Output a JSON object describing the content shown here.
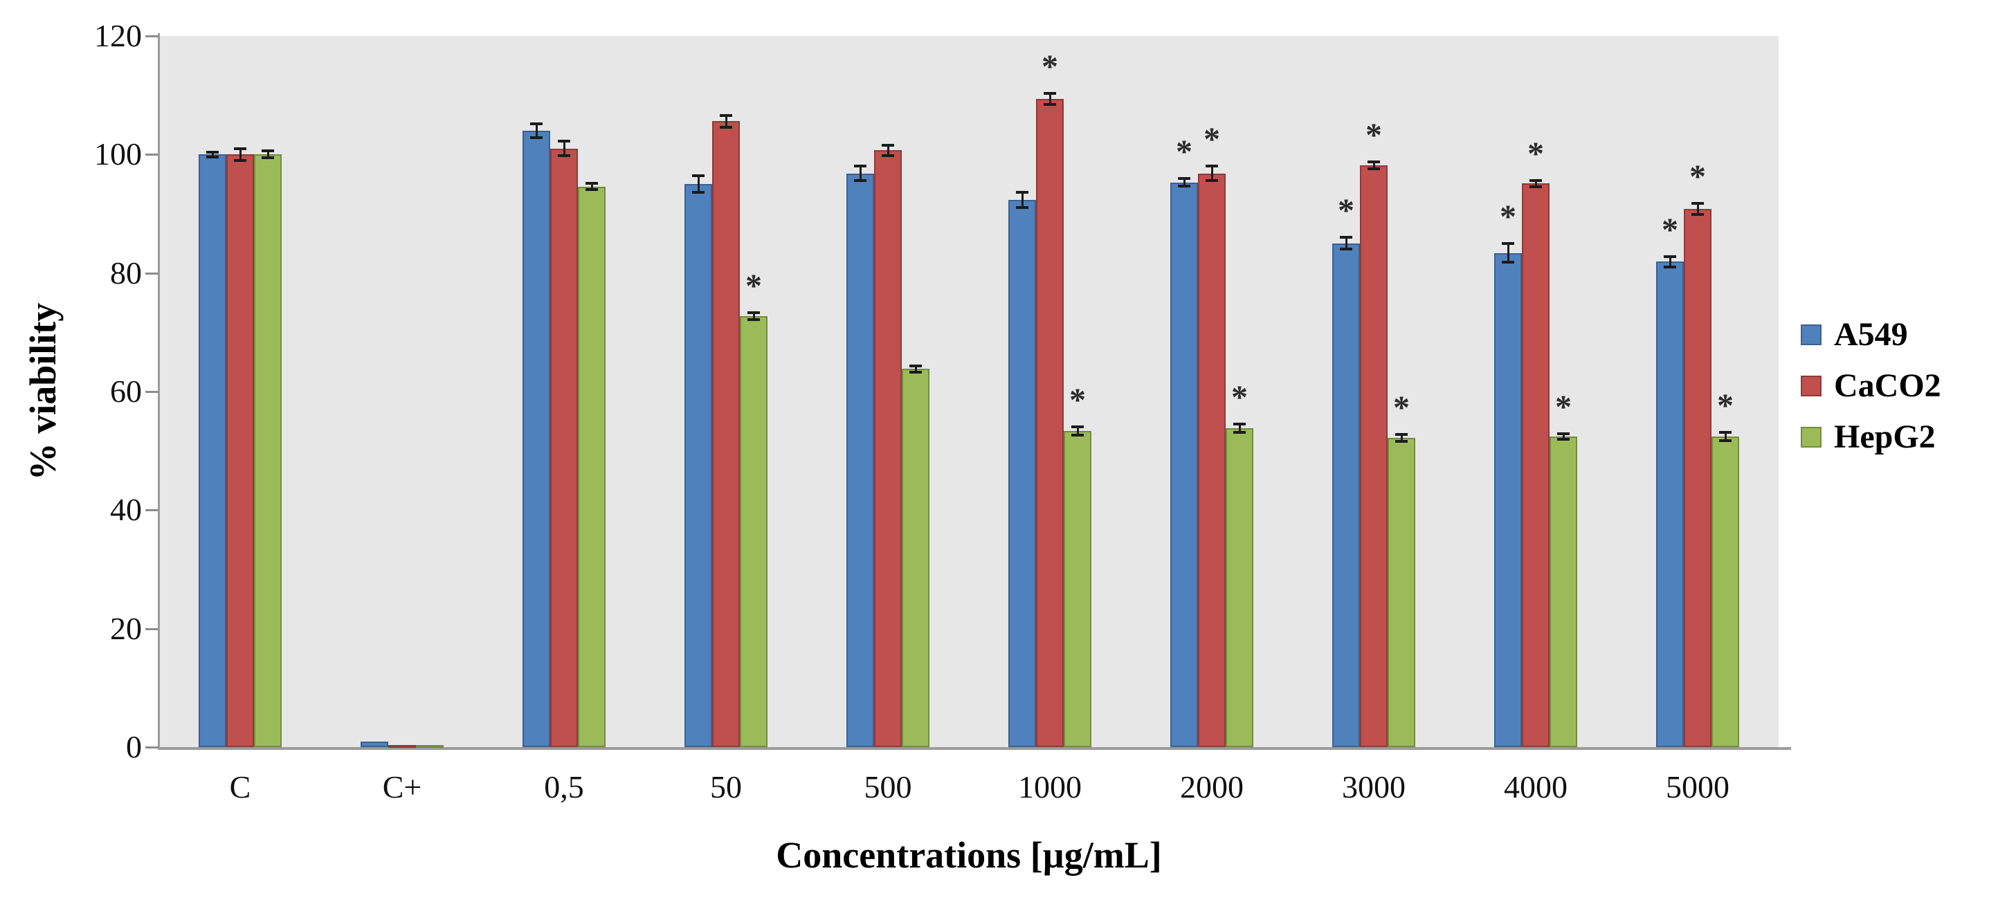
{
  "chart_data": {
    "type": "bar",
    "title": "",
    "xlabel": "Concentrations [µg/mL]",
    "ylabel": "% viability",
    "ylim": [
      0,
      120
    ],
    "yticks": [
      0,
      20,
      40,
      60,
      80,
      100,
      120
    ],
    "grid": false,
    "legend_position": "right",
    "plot_background": "#e7e7e7",
    "axis_line_color": "#9b9b9b",
    "error_bar_color": "#1b1b1b",
    "significance_marker": "*",
    "categories": [
      "C",
      "C+",
      "0,5",
      "50",
      "500",
      "1000",
      "2000",
      "3000",
      "4000",
      "5000"
    ],
    "series": [
      {
        "name": "A549",
        "color": "#4f81bd",
        "border_color": "#3a6191",
        "values": [
          100,
          0.9,
          104.0,
          95.0,
          96.8,
          92.3,
          95.3,
          85.0,
          83.4,
          81.9
        ],
        "errors": [
          0.4,
          0.1,
          1.2,
          1.4,
          1.2,
          1.3,
          0.6,
          1.0,
          1.6,
          0.9
        ],
        "significant": [
          false,
          false,
          false,
          false,
          false,
          false,
          true,
          true,
          true,
          true
        ]
      },
      {
        "name": "CaCO2",
        "color": "#c0504d",
        "border_color": "#8f3a38",
        "values": [
          100,
          0.4,
          101.0,
          105.6,
          100.7,
          109.4,
          96.8,
          98.2,
          95.1,
          90.8
        ],
        "errors": [
          1.0,
          0.1,
          1.2,
          1.0,
          0.9,
          0.9,
          1.2,
          0.6,
          0.5,
          0.9
        ],
        "significant": [
          false,
          false,
          false,
          false,
          false,
          true,
          true,
          true,
          true,
          true
        ]
      },
      {
        "name": "HepG2",
        "color": "#9bbb59",
        "border_color": "#738c3e",
        "values": [
          100,
          0.4,
          94.6,
          72.7,
          63.8,
          53.3,
          53.8,
          52.2,
          52.4,
          52.4
        ],
        "errors": [
          0.6,
          0.1,
          0.5,
          0.6,
          0.5,
          0.7,
          0.7,
          0.6,
          0.5,
          0.7
        ],
        "significant": [
          false,
          false,
          false,
          true,
          false,
          true,
          true,
          true,
          true,
          true
        ]
      }
    ]
  }
}
